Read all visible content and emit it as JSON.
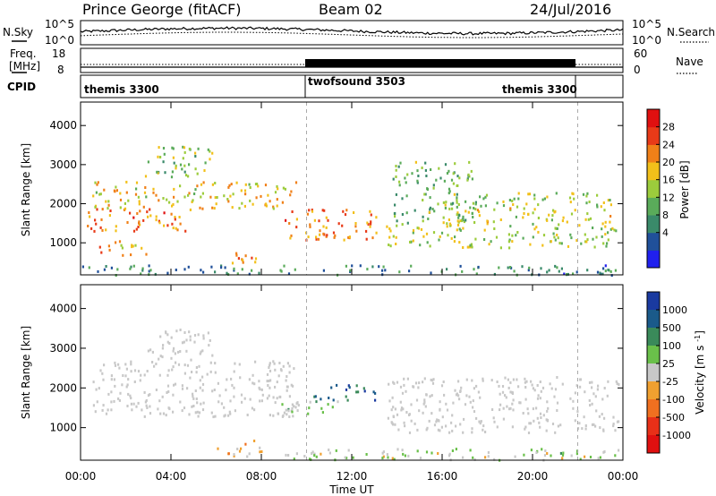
{
  "header": {
    "station": "Prince George (fitACF)",
    "beam": "Beam 02",
    "date": "24/Jul/2016"
  },
  "noise_panel": {
    "left_label": "N.Sky",
    "right_label": "N.Search",
    "left_ticks": [
      "10^5",
      "10^0"
    ],
    "right_ticks": [
      "10^5",
      "10^0"
    ]
  },
  "freq_panel": {
    "left_label_1": "Freq.",
    "left_label_2": "[MHz]",
    "right_label": "Nave",
    "left_ticks": [
      "18",
      "8"
    ],
    "right_ticks": [
      "60",
      "0"
    ]
  },
  "cpid": {
    "label": "CPID",
    "segments": [
      {
        "name": "themis 3300",
        "start_hour": 0,
        "end_hour": 10
      },
      {
        "name": "twofsound 3503",
        "start_hour": 10,
        "end_hour": 22
      },
      {
        "name": "themis 3300",
        "start_hour": 22,
        "end_hour": 24
      }
    ]
  },
  "x_axis": {
    "label": "Time UT",
    "ticks": [
      "00:00",
      "04:00",
      "08:00",
      "12:00",
      "16:00",
      "20:00",
      "00:00"
    ],
    "range_hours": [
      0,
      24
    ]
  },
  "chart_data": [
    {
      "type": "heatmap",
      "name": "power",
      "ylabel": "Slant Range [km]",
      "ylim": [
        180,
        4600
      ],
      "yticks": [
        "1000",
        "2000",
        "3000",
        "4000"
      ],
      "colorbar": {
        "label": "Power [dB]",
        "ticks": [
          "28",
          "24",
          "20",
          "16",
          "12",
          "8",
          "4"
        ],
        "range": [
          0,
          30
        ],
        "colors": [
          "#2020ee",
          "#20509a",
          "#3a8a6a",
          "#5aab5a",
          "#9ccc3c",
          "#f2c01a",
          "#f08018",
          "#e83a18",
          "#e01010"
        ]
      },
      "scatter_bands": [
        {
          "time": [
            0.2,
            5.0
          ],
          "range": [
            1300,
            1900
          ],
          "level": 22
        },
        {
          "time": [
            0.5,
            9.6
          ],
          "range": [
            1900,
            2600
          ],
          "level": 18
        },
        {
          "time": [
            2.8,
            5.8
          ],
          "range": [
            2700,
            3500
          ],
          "level": 14
        },
        {
          "time": [
            0.8,
            3.0
          ],
          "range": [
            700,
            1100
          ],
          "level": 20
        },
        {
          "time": [
            6.3,
            7.8
          ],
          "range": [
            400,
            800
          ],
          "level": 21
        },
        {
          "time": [
            9.0,
            13.2
          ],
          "range": [
            1100,
            1900
          ],
          "level": 22
        },
        {
          "time": [
            13.8,
            17.5
          ],
          "range": [
            1500,
            3100
          ],
          "level": 12
        },
        {
          "time": [
            13.5,
            23.8
          ],
          "range": [
            900,
            1500
          ],
          "level": 15
        },
        {
          "time": [
            16.0,
            23.5
          ],
          "range": [
            1500,
            2300
          ],
          "level": 16
        },
        {
          "time": [
            0.0,
            24.0
          ],
          "range": [
            200,
            450
          ],
          "level": 8
        }
      ]
    },
    {
      "type": "heatmap",
      "name": "velocity",
      "ylabel": "Slant Range [km]",
      "ylim": [
        180,
        4600
      ],
      "yticks": [
        "1000",
        "2000",
        "3000",
        "4000"
      ],
      "colorbar": {
        "label": "Velocity [m s^-1]",
        "ticks": [
          "1000",
          "500",
          "100",
          "25",
          "-25",
          "-100",
          "-500",
          "-1000"
        ],
        "range": [
          -1200,
          1200
        ],
        "colors": [
          "#1a3aa0",
          "#1a5a8a",
          "#3a8a5a",
          "#6ac04a",
          "#c8c8c8",
          "#f0a030",
          "#f07020",
          "#e83018",
          "#e01010"
        ]
      },
      "scatter_bands": [
        {
          "time": [
            0.5,
            9.6
          ],
          "range": [
            1300,
            2700
          ],
          "velocity": 0
        },
        {
          "time": [
            2.8,
            5.8
          ],
          "range": [
            2700,
            3500
          ],
          "velocity": 0
        },
        {
          "time": [
            8.8,
            11.6
          ],
          "range": [
            1300,
            1700
          ],
          "velocity": 150
        },
        {
          "time": [
            10.3,
            13.0
          ],
          "range": [
            1700,
            2100
          ],
          "velocity": 700
        },
        {
          "time": [
            13.5,
            23.8
          ],
          "range": [
            900,
            2300
          ],
          "velocity": 0
        },
        {
          "time": [
            6.0,
            8.0
          ],
          "range": [
            300,
            700
          ],
          "velocity": -200
        },
        {
          "time": [
            9.0,
            24.0
          ],
          "range": [
            200,
            500
          ],
          "velocity": 120
        }
      ]
    }
  ]
}
